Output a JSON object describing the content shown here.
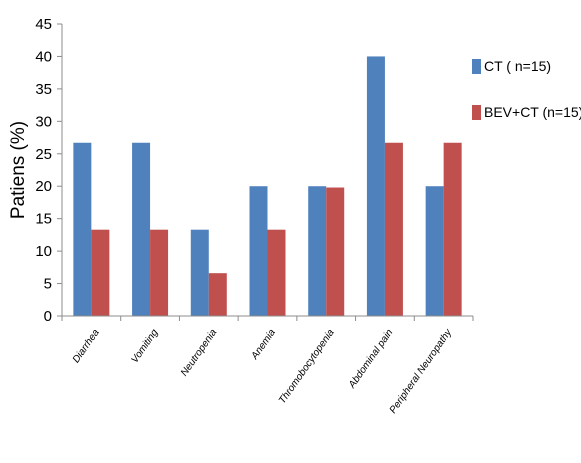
{
  "chart_data": {
    "type": "bar",
    "title": "",
    "xlabel": "",
    "ylabel": "Patiens (%)",
    "ylim": [
      0,
      45
    ],
    "yticks": [
      0,
      5,
      10,
      15,
      20,
      25,
      30,
      35,
      40,
      45
    ],
    "grid": false,
    "legend_position": "right",
    "categories": [
      "Diarrhea",
      "Vomiting",
      "Neutropenia",
      "Anemia",
      "Thromobocytopenia",
      "Abdominal pain",
      "Peripheral Neuropathy"
    ],
    "series": [
      {
        "name": "CT ( n=15)",
        "color": "#4f81bd",
        "values": [
          26.7,
          26.7,
          13.3,
          20.0,
          20.0,
          40.0,
          20.0
        ]
      },
      {
        "name": "BEV+CT (n=15)",
        "color": "#c0504d",
        "values": [
          13.3,
          13.3,
          6.6,
          13.3,
          19.8,
          26.7,
          26.7
        ]
      }
    ]
  }
}
